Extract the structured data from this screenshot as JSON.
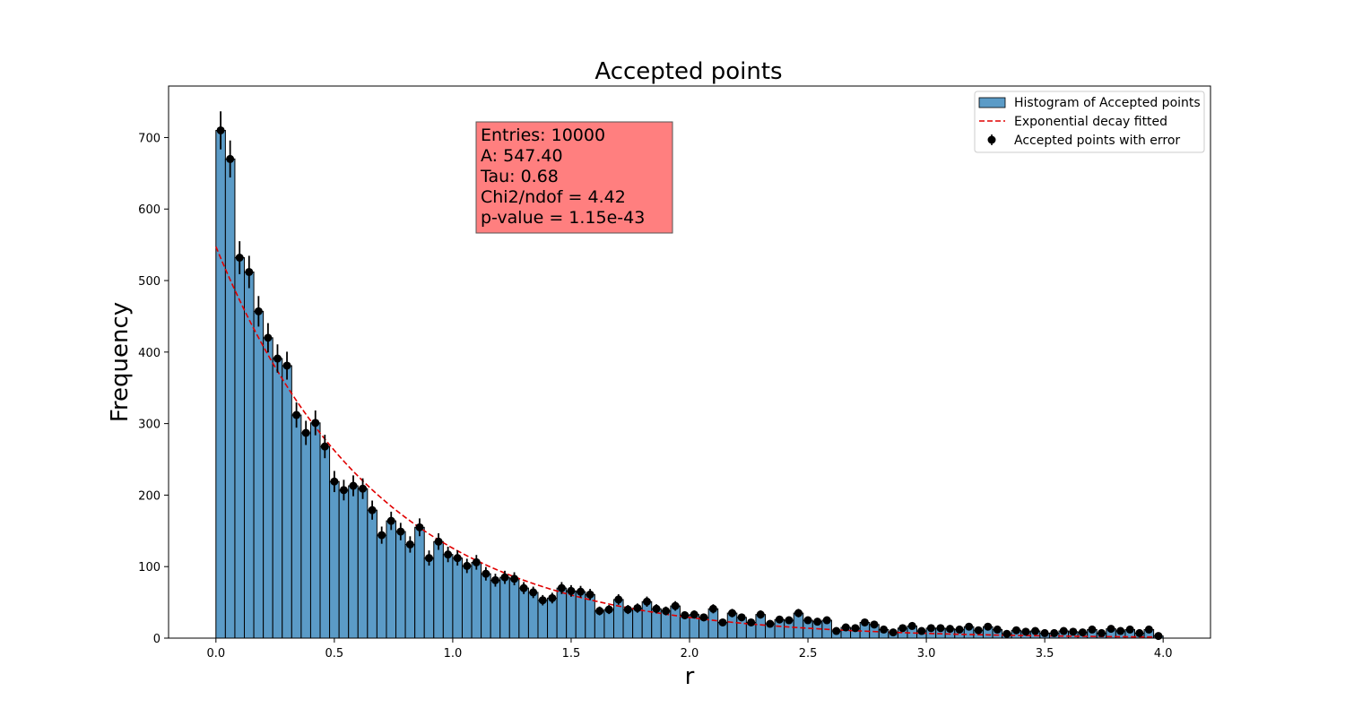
{
  "chart_data": {
    "type": "bar",
    "title": "Accepted points",
    "xlabel": "r",
    "ylabel": "Frequency",
    "xlim": [
      -0.2,
      4.2
    ],
    "ylim": [
      0,
      772
    ],
    "xticks": [
      0.0,
      0.5,
      1.0,
      1.5,
      2.0,
      2.5,
      3.0,
      3.5,
      4.0
    ],
    "xtick_labels": [
      "0.0",
      "0.5",
      "1.0",
      "1.5",
      "2.0",
      "2.5",
      "3.0",
      "3.5",
      "4.0"
    ],
    "yticks": [
      0,
      100,
      200,
      300,
      400,
      500,
      600,
      700
    ],
    "ytick_labels": [
      "0",
      "100",
      "200",
      "300",
      "400",
      "500",
      "600",
      "700"
    ],
    "grid": false,
    "legend_position": "top-right",
    "bin_start": 0.0,
    "bin_width": 0.04,
    "series": [
      {
        "name": "Histogram of Accepted points",
        "kind": "histogram",
        "color": "#5b9bc7",
        "edgecolor": "#000000",
        "values": [
          710,
          670,
          532,
          512,
          457,
          420,
          391,
          381,
          312,
          287,
          301,
          268,
          219,
          207,
          213,
          209,
          179,
          144,
          164,
          149,
          131,
          155,
          112,
          135,
          117,
          112,
          101,
          106,
          90,
          81,
          85,
          83,
          70,
          64,
          53,
          56,
          70,
          66,
          65,
          61,
          38,
          40,
          54,
          40,
          42,
          51,
          41,
          38,
          45,
          32,
          33,
          29,
          41,
          22,
          35,
          29,
          22,
          33,
          20,
          26,
          25,
          35,
          25,
          23,
          25,
          10,
          15,
          14,
          22,
          19,
          12,
          8,
          14,
          17,
          10,
          14,
          14,
          13,
          12,
          16,
          11,
          16,
          12,
          6,
          11,
          9,
          10,
          7,
          7,
          10,
          9,
          8,
          12,
          7,
          13,
          10,
          12,
          7,
          12,
          3
        ]
      },
      {
        "name": "Exponential decay fitted",
        "kind": "line",
        "style": "dashed",
        "color": "#e00000",
        "A": 547.4,
        "tau": 0.68
      },
      {
        "name": "Accepted points with error",
        "kind": "errorbar",
        "color": "#000000",
        "error": "sqrt"
      }
    ],
    "annotation": {
      "lines": [
        "Entries: 10000",
        "A: 547.40",
        "Tau: 0.68",
        "Chi2/ndof = 4.42",
        "p-value = 1.15e-43"
      ],
      "background": "#ff7f7f"
    }
  }
}
